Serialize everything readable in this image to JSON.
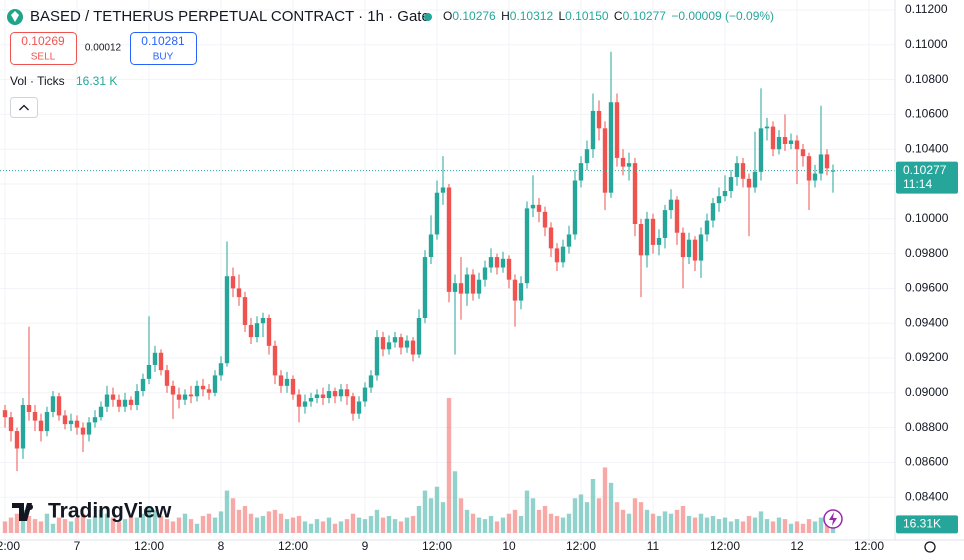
{
  "header": {
    "symbol": "BASED / TETHERUS PERPETUAL CONTRACT · 1h · Gate",
    "o_label": "O",
    "o": "0.10276",
    "h_label": "H",
    "h": "0.10312",
    "l_label": "L",
    "l": "0.10150",
    "c_label": "C",
    "c": "0.10277",
    "change": "−0.00009 (−0.09%)"
  },
  "trade": {
    "sell_price": "0.10269",
    "sell": "SELL",
    "spread": "0.00012",
    "buy_price": "0.10281",
    "buy": "BUY"
  },
  "volume_legend": {
    "label": "Vol · Ticks",
    "value": "16.31 K"
  },
  "brand": "TradingView",
  "chart_data": {
    "type": "candlestick",
    "open": [
      0.089,
      0.0886,
      0.0878,
      0.0868,
      0.0893,
      0.0889,
      0.0884,
      0.0878,
      0.0889,
      0.0898,
      0.0887,
      0.0882,
      0.0884,
      0.088,
      0.0876,
      0.0883,
      0.0886,
      0.0892,
      0.0899,
      0.0896,
      0.0892,
      0.0896,
      0.0893,
      0.0901,
      0.0908,
      0.0916,
      0.0923,
      0.0913,
      0.0904,
      0.0899,
      0.0896,
      0.0899,
      0.0898,
      0.0904,
      0.0902,
      0.09,
      0.091,
      0.0917,
      0.0967,
      0.096,
      0.0955,
      0.0939,
      0.0932,
      0.094,
      0.0943,
      0.0927,
      0.091,
      0.0904,
      0.0908,
      0.0899,
      0.0892,
      0.0895,
      0.0897,
      0.0899,
      0.0897,
      0.0901,
      0.0898,
      0.0902,
      0.0898,
      0.0888,
      0.0895,
      0.0903,
      0.091,
      0.0932,
      0.0925,
      0.0929,
      0.0932,
      0.0926,
      0.093,
      0.0922,
      0.0943,
      0.0978,
      0.0991,
      0.1015,
      0.1018,
      0.0958,
      0.0963,
      0.0957,
      0.0968,
      0.0957,
      0.0965,
      0.0972,
      0.0978,
      0.0972,
      0.0977,
      0.0965,
      0.0953,
      0.0963,
      0.1006,
      0.1008,
      0.1004,
      0.0995,
      0.0983,
      0.0975,
      0.0984,
      0.0991,
      0.1022,
      0.1032,
      0.104,
      0.1062,
      0.1052,
      0.1015,
      0.1067,
      0.1035,
      0.103,
      0.1032,
      0.0997,
      0.0979,
      0.1,
      0.0985,
      0.0989,
      0.1005,
      0.1011,
      0.0992,
      0.0978,
      0.0988,
      0.0976,
      0.0991,
      0.0999,
      0.1009,
      0.1013,
      0.1016,
      0.1024,
      0.1032,
      0.1023,
      0.1018,
      0.1027,
      0.1052,
      0.1053,
      0.104,
      0.1047,
      0.1043,
      0.1045,
      0.104,
      0.1036,
      0.1022,
      0.1026,
      0.1037,
      0.10276
    ],
    "high": [
      0.0893,
      0.0889,
      0.088,
      0.0897,
      0.0938,
      0.0893,
      0.0888,
      0.0892,
      0.0901,
      0.09,
      0.089,
      0.0888,
      0.0887,
      0.0883,
      0.0886,
      0.089,
      0.0895,
      0.0904,
      0.0903,
      0.0899,
      0.09,
      0.0898,
      0.0905,
      0.0911,
      0.0944,
      0.0927,
      0.0925,
      0.0916,
      0.0907,
      0.0903,
      0.0902,
      0.0904,
      0.0907,
      0.0908,
      0.0905,
      0.0913,
      0.0921,
      0.0987,
      0.0972,
      0.0968,
      0.0958,
      0.0943,
      0.0944,
      0.0946,
      0.0945,
      0.093,
      0.0913,
      0.0912,
      0.091,
      0.0902,
      0.0899,
      0.09,
      0.0902,
      0.0903,
      0.0905,
      0.0903,
      0.0905,
      0.0905,
      0.09,
      0.0898,
      0.0906,
      0.0913,
      0.0936,
      0.0935,
      0.0933,
      0.0935,
      0.0934,
      0.0933,
      0.0932,
      0.0948,
      0.0982,
      0.1002,
      0.1022,
      0.1036,
      0.102,
      0.0968,
      0.0978,
      0.0972,
      0.0971,
      0.0969,
      0.0976,
      0.0983,
      0.098,
      0.0981,
      0.0979,
      0.0968,
      0.0967,
      0.101,
      0.1025,
      0.1012,
      0.1007,
      0.0998,
      0.0986,
      0.0988,
      0.0996,
      0.1028,
      0.1036,
      0.1045,
      0.1072,
      0.1068,
      0.1056,
      0.1096,
      0.1072,
      0.104,
      0.1038,
      0.1035,
      0.1,
      0.1004,
      0.1003,
      0.0994,
      0.1008,
      0.1017,
      0.1013,
      0.0995,
      0.0992,
      0.099,
      0.0995,
      0.1003,
      0.1012,
      0.1018,
      0.1025,
      0.1028,
      0.1036,
      0.1035,
      0.1026,
      0.105,
      0.1075,
      0.1058,
      0.1056,
      0.1051,
      0.106,
      0.1049,
      0.1048,
      0.1043,
      0.1038,
      0.1031,
      0.1065,
      0.104,
      0.10312
    ],
    "low": [
      0.088,
      0.0872,
      0.0855,
      0.0862,
      0.0884,
      0.0878,
      0.0872,
      0.0875,
      0.0886,
      0.0884,
      0.0879,
      0.0878,
      0.0876,
      0.0866,
      0.0872,
      0.088,
      0.0884,
      0.0889,
      0.0892,
      0.0889,
      0.0889,
      0.089,
      0.089,
      0.0898,
      0.0905,
      0.0912,
      0.091,
      0.09,
      0.0885,
      0.0891,
      0.0893,
      0.0894,
      0.0895,
      0.0898,
      0.0896,
      0.0898,
      0.0907,
      0.0915,
      0.0955,
      0.095,
      0.0935,
      0.0928,
      0.0929,
      0.0932,
      0.0922,
      0.0905,
      0.09,
      0.09,
      0.0896,
      0.0883,
      0.0888,
      0.0892,
      0.0894,
      0.0893,
      0.0894,
      0.0894,
      0.0895,
      0.0893,
      0.0884,
      0.0885,
      0.0892,
      0.09,
      0.0907,
      0.0921,
      0.0922,
      0.0926,
      0.0922,
      0.0923,
      0.0918,
      0.092,
      0.094,
      0.0974,
      0.0988,
      0.1008,
      0.0952,
      0.0922,
      0.0942,
      0.095,
      0.0953,
      0.0954,
      0.0961,
      0.0969,
      0.0968,
      0.0969,
      0.096,
      0.0938,
      0.0948,
      0.096,
      0.1001,
      0.0998,
      0.099,
      0.0978,
      0.097,
      0.0972,
      0.098,
      0.0988,
      0.1018,
      0.1028,
      0.1035,
      0.1045,
      0.1005,
      0.1012,
      0.103,
      0.1025,
      0.1022,
      0.099,
      0.0955,
      0.0972,
      0.098,
      0.0979,
      0.0983,
      0.1,
      0.0985,
      0.096,
      0.0974,
      0.097,
      0.0966,
      0.0987,
      0.0995,
      0.1004,
      0.101,
      0.1012,
      0.1019,
      0.1018,
      0.099,
      0.1015,
      0.1022,
      0.1045,
      0.1036,
      0.1037,
      0.1039,
      0.104,
      0.102,
      0.103,
      0.1005,
      0.1018,
      0.1022,
      0.1025,
      0.1015
    ],
    "close": [
      0.0886,
      0.0878,
      0.0868,
      0.0893,
      0.0889,
      0.0884,
      0.0878,
      0.0889,
      0.0898,
      0.0887,
      0.0882,
      0.0884,
      0.088,
      0.0876,
      0.0883,
      0.0886,
      0.0892,
      0.0899,
      0.0896,
      0.0892,
      0.0896,
      0.0893,
      0.0901,
      0.0908,
      0.0916,
      0.0923,
      0.0913,
      0.0904,
      0.0899,
      0.0896,
      0.0899,
      0.0898,
      0.0904,
      0.0902,
      0.09,
      0.091,
      0.0917,
      0.0967,
      0.096,
      0.0955,
      0.0939,
      0.0932,
      0.094,
      0.0943,
      0.0927,
      0.091,
      0.0904,
      0.0908,
      0.0899,
      0.0892,
      0.0895,
      0.0897,
      0.0899,
      0.0897,
      0.0901,
      0.0898,
      0.0902,
      0.0898,
      0.0888,
      0.0895,
      0.0903,
      0.091,
      0.0932,
      0.0925,
      0.0929,
      0.0932,
      0.0926,
      0.093,
      0.0922,
      0.0943,
      0.0978,
      0.0991,
      0.1015,
      0.1018,
      0.0958,
      0.0963,
      0.0957,
      0.0968,
      0.0957,
      0.0965,
      0.0972,
      0.0978,
      0.0972,
      0.0977,
      0.0965,
      0.0953,
      0.0963,
      0.1006,
      0.1008,
      0.1004,
      0.0995,
      0.0983,
      0.0975,
      0.0984,
      0.0991,
      0.1022,
      0.1032,
      0.104,
      0.1062,
      0.1052,
      0.1015,
      0.1067,
      0.1035,
      0.103,
      0.1032,
      0.0997,
      0.0979,
      0.1,
      0.0985,
      0.0989,
      0.1005,
      0.1011,
      0.0992,
      0.0978,
      0.0988,
      0.0976,
      0.0991,
      0.0999,
      0.1009,
      0.1013,
      0.1016,
      0.1024,
      0.1032,
      0.1023,
      0.1018,
      0.1027,
      0.1052,
      0.1053,
      0.104,
      0.1047,
      0.1043,
      0.1045,
      0.104,
      0.1036,
      0.1022,
      0.1026,
      0.1037,
      0.1029,
      0.10277
    ],
    "volume": [
      15,
      20,
      25,
      30,
      22,
      18,
      15,
      25,
      12,
      20,
      18,
      15,
      20,
      25,
      18,
      22,
      30,
      25,
      20,
      15,
      18,
      22,
      20,
      25,
      35,
      30,
      22,
      18,
      15,
      20,
      25,
      18,
      12,
      22,
      25,
      20,
      28,
      55,
      45,
      30,
      35,
      25,
      20,
      22,
      28,
      30,
      25,
      18,
      20,
      22,
      15,
      12,
      18,
      15,
      20,
      12,
      15,
      18,
      25,
      20,
      18,
      22,
      30,
      20,
      22,
      18,
      15,
      20,
      22,
      35,
      55,
      45,
      60,
      40,
      175,
      80,
      45,
      30,
      25,
      20,
      18,
      22,
      15,
      20,
      25,
      30,
      22,
      55,
      45,
      30,
      35,
      25,
      22,
      20,
      25,
      45,
      50,
      40,
      70,
      45,
      85,
      65,
      40,
      30,
      25,
      45,
      40,
      30,
      25,
      22,
      28,
      25,
      30,
      35,
      22,
      20,
      25,
      20,
      22,
      18,
      20,
      15,
      18,
      15,
      22,
      20,
      28,
      18,
      15,
      20,
      18,
      12,
      15,
      12,
      18,
      15,
      20,
      12,
      16.31
    ],
    "colors": {
      "up": "#26a69a",
      "down": "#ef5350"
    },
    "ylim": [
      0.08154,
      0.112575
    ],
    "yticks": [
      {
        "value": 0.112,
        "label": "0.11200"
      },
      {
        "value": 0.11,
        "label": "0.11000"
      },
      {
        "value": 0.108,
        "label": "0.10800"
      },
      {
        "value": 0.106,
        "label": "0.10600"
      },
      {
        "value": 0.104,
        "label": "0.10400"
      },
      {
        "value": 0.102,
        "label": "0.10200"
      },
      {
        "value": 0.1,
        "label": "0.10000"
      },
      {
        "value": 0.098,
        "label": "0.09800"
      },
      {
        "value": 0.096,
        "label": "0.09600"
      },
      {
        "value": 0.094,
        "label": "0.09400"
      },
      {
        "value": 0.092,
        "label": "0.09200"
      },
      {
        "value": 0.09,
        "label": "0.09000"
      },
      {
        "value": 0.088,
        "label": "0.08800"
      },
      {
        "value": 0.086,
        "label": "0.08600"
      },
      {
        "value": 0.084,
        "label": "0.08400"
      }
    ],
    "xlim": [
      -0.833,
      148.333
    ],
    "xticks": [
      {
        "value": 0,
        "label": "12:00"
      },
      {
        "value": 12,
        "label": "7"
      },
      {
        "value": 24,
        "label": "12:00"
      },
      {
        "value": 36,
        "label": "8"
      },
      {
        "value": 48,
        "label": "12:00"
      },
      {
        "value": 60,
        "label": "9"
      },
      {
        "value": 72,
        "label": "12:00"
      },
      {
        "value": 84,
        "label": "10"
      },
      {
        "value": 96,
        "label": "12:00"
      },
      {
        "value": 108,
        "label": "11"
      },
      {
        "value": 120,
        "label": "12:00"
      },
      {
        "value": 132,
        "label": "12"
      },
      {
        "value": 144,
        "label": "12:00"
      }
    ],
    "countdown": "11:14",
    "volume_label": "16.31K",
    "grid": true
  }
}
